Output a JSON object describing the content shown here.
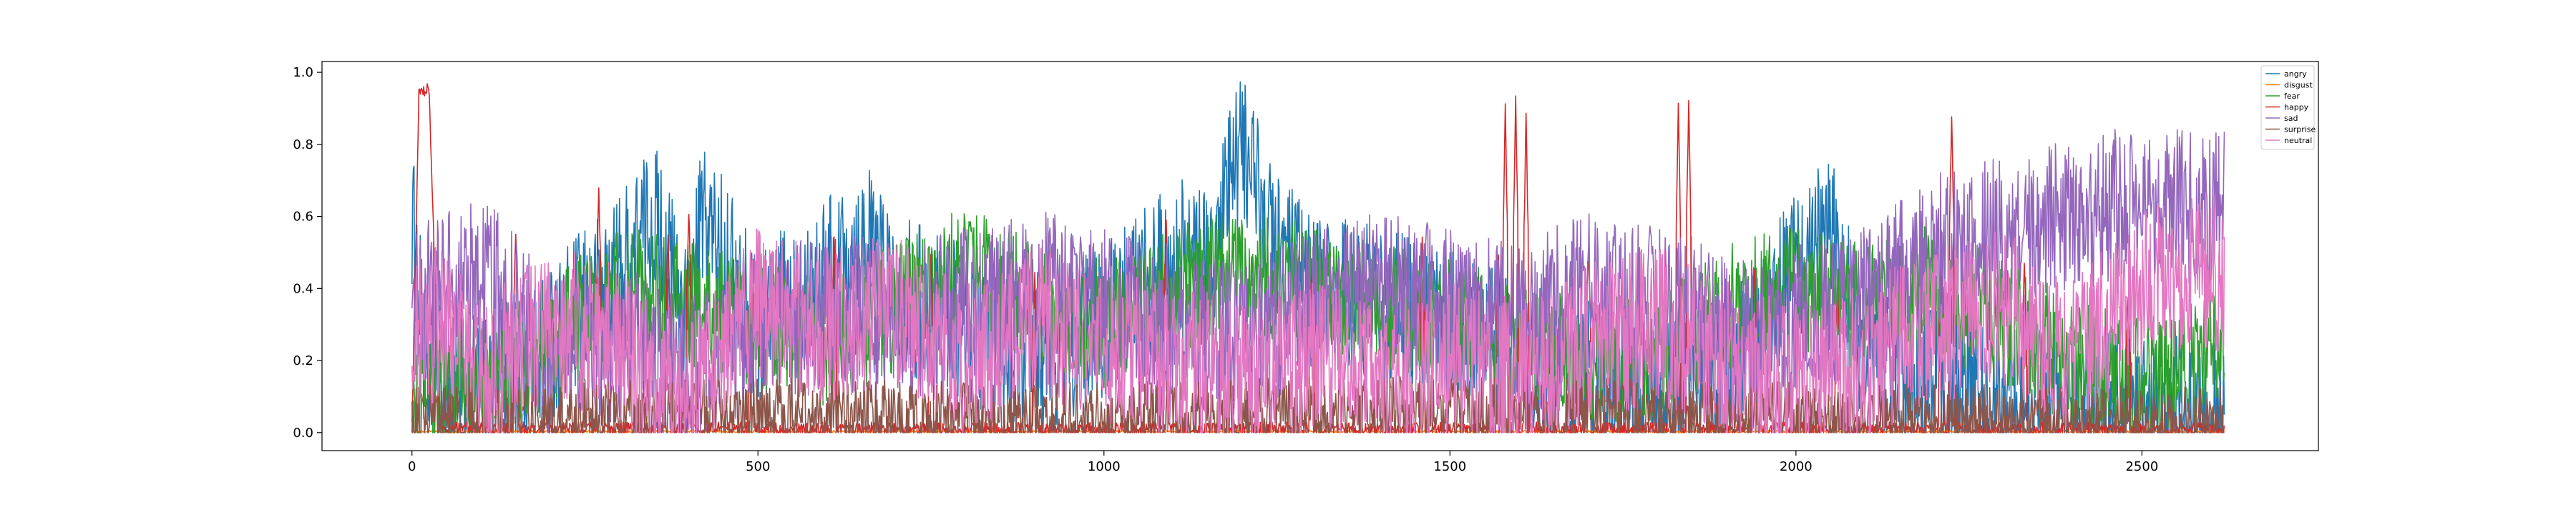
{
  "chart_data": {
    "type": "line",
    "title": "",
    "xlabel": "",
    "ylabel": "",
    "xlim": [
      -130,
      2755
    ],
    "ylim": [
      -0.05,
      1.03
    ],
    "x_count": 2620,
    "xticks": [
      0,
      500,
      1000,
      1500,
      2000,
      2500
    ],
    "xtick_labels": [
      "0",
      "500",
      "1000",
      "1500",
      "2000",
      "2500"
    ],
    "yticks": [
      0.0,
      0.2,
      0.4,
      0.6,
      0.8,
      1.0
    ],
    "ytick_labels": [
      "0.0",
      "0.2",
      "0.4",
      "0.6",
      "0.8",
      "1.0"
    ],
    "grid": false,
    "legend_position": "top-right",
    "series": [
      {
        "name": "angry",
        "color": "#1f77b4",
        "keypoints": [
          [
            0,
            0.6
          ],
          [
            20,
            0.15
          ],
          [
            100,
            0.12
          ],
          [
            200,
            0.25
          ],
          [
            300,
            0.45
          ],
          [
            350,
            0.6
          ],
          [
            400,
            0.3
          ],
          [
            420,
            0.6
          ],
          [
            500,
            0.3
          ],
          [
            600,
            0.45
          ],
          [
            650,
            0.55
          ],
          [
            700,
            0.4
          ],
          [
            800,
            0.3
          ],
          [
            900,
            0.2
          ],
          [
            1000,
            0.3
          ],
          [
            1100,
            0.5
          ],
          [
            1150,
            0.45
          ],
          [
            1200,
            0.8
          ],
          [
            1250,
            0.5
          ],
          [
            1300,
            0.4
          ],
          [
            1400,
            0.35
          ],
          [
            1500,
            0.3
          ],
          [
            1600,
            0.2
          ],
          [
            1700,
            0.15
          ],
          [
            1800,
            0.1
          ],
          [
            1900,
            0.15
          ],
          [
            2000,
            0.45
          ],
          [
            2050,
            0.55
          ],
          [
            2100,
            0.2
          ],
          [
            2200,
            0.15
          ],
          [
            2300,
            0.1
          ],
          [
            2400,
            0.08
          ],
          [
            2500,
            0.05
          ],
          [
            2620,
            0.05
          ]
        ],
        "amplitude": 0.22
      },
      {
        "name": "disgust",
        "color": "#ff7f0e",
        "keypoints": [
          [
            0,
            0.003
          ],
          [
            2620,
            0.003
          ]
        ],
        "amplitude": 0.003
      },
      {
        "name": "fear",
        "color": "#2ca02c",
        "keypoints": [
          [
            0,
            0.05
          ],
          [
            50,
            0.15
          ],
          [
            100,
            0.15
          ],
          [
            200,
            0.25
          ],
          [
            300,
            0.4
          ],
          [
            400,
            0.35
          ],
          [
            500,
            0.3
          ],
          [
            600,
            0.25
          ],
          [
            700,
            0.35
          ],
          [
            800,
            0.45
          ],
          [
            900,
            0.35
          ],
          [
            1000,
            0.3
          ],
          [
            1100,
            0.4
          ],
          [
            1200,
            0.45
          ],
          [
            1300,
            0.4
          ],
          [
            1400,
            0.35
          ],
          [
            1500,
            0.3
          ],
          [
            1600,
            0.25
          ],
          [
            1700,
            0.2
          ],
          [
            1800,
            0.2
          ],
          [
            1900,
            0.35
          ],
          [
            2000,
            0.4
          ],
          [
            2100,
            0.35
          ],
          [
            2200,
            0.4
          ],
          [
            2300,
            0.3
          ],
          [
            2400,
            0.2
          ],
          [
            2500,
            0.15
          ],
          [
            2600,
            0.2
          ],
          [
            2620,
            0.25
          ]
        ],
        "amplitude": 0.18
      },
      {
        "name": "happy",
        "color": "#d62728",
        "keypoints": [
          [
            0,
            0.01
          ],
          [
            10,
            0.95
          ],
          [
            25,
            0.95
          ],
          [
            40,
            0.01
          ],
          [
            2620,
            0.01
          ]
        ],
        "amplitude": 0.02,
        "spikes": [
          [
            150,
            0.6
          ],
          [
            270,
            0.7
          ],
          [
            370,
            0.55
          ],
          [
            400,
            0.65
          ],
          [
            490,
            0.5
          ],
          [
            610,
            0.55
          ],
          [
            750,
            0.5
          ],
          [
            900,
            0.45
          ],
          [
            1090,
            0.6
          ],
          [
            1300,
            0.45
          ],
          [
            1460,
            0.55
          ],
          [
            1570,
            0.5
          ],
          [
            1580,
            0.92
          ],
          [
            1595,
            0.95
          ],
          [
            1610,
            0.9
          ],
          [
            1700,
            0.55
          ],
          [
            1830,
            0.95
          ],
          [
            1845,
            0.96
          ],
          [
            1940,
            0.5
          ],
          [
            2060,
            0.45
          ],
          [
            2210,
            0.55
          ],
          [
            2225,
            0.92
          ],
          [
            2330,
            0.5
          ],
          [
            2480,
            0.4
          ]
        ]
      },
      {
        "name": "sad",
        "color": "#9467bd",
        "keypoints": [
          [
            0,
            0.35
          ],
          [
            50,
            0.4
          ],
          [
            100,
            0.45
          ],
          [
            200,
            0.2
          ],
          [
            300,
            0.25
          ],
          [
            400,
            0.15
          ],
          [
            500,
            0.3
          ],
          [
            600,
            0.35
          ],
          [
            700,
            0.3
          ],
          [
            800,
            0.35
          ],
          [
            900,
            0.4
          ],
          [
            1000,
            0.35
          ],
          [
            1100,
            0.3
          ],
          [
            1200,
            0.25
          ],
          [
            1300,
            0.35
          ],
          [
            1400,
            0.4
          ],
          [
            1500,
            0.35
          ],
          [
            1600,
            0.3
          ],
          [
            1700,
            0.4
          ],
          [
            1800,
            0.35
          ],
          [
            1900,
            0.3
          ],
          [
            2000,
            0.3
          ],
          [
            2100,
            0.35
          ],
          [
            2200,
            0.5
          ],
          [
            2300,
            0.55
          ],
          [
            2400,
            0.6
          ],
          [
            2500,
            0.65
          ],
          [
            2600,
            0.6
          ],
          [
            2620,
            0.65
          ]
        ],
        "amplitude": 0.22
      },
      {
        "name": "surprise",
        "color": "#8c564b",
        "keypoints": [
          [
            0,
            0.03
          ],
          [
            300,
            0.05
          ],
          [
            600,
            0.05
          ],
          [
            900,
            0.04
          ],
          [
            1200,
            0.05
          ],
          [
            1500,
            0.06
          ],
          [
            1800,
            0.05
          ],
          [
            2100,
            0.04
          ],
          [
            2400,
            0.03
          ],
          [
            2620,
            0.03
          ]
        ],
        "amplitude": 0.1
      },
      {
        "name": "neutral",
        "color": "#e377c2",
        "keypoints": [
          [
            0,
            0.3
          ],
          [
            50,
            0.3
          ],
          [
            100,
            0.15
          ],
          [
            200,
            0.3
          ],
          [
            300,
            0.25
          ],
          [
            400,
            0.1
          ],
          [
            500,
            0.35
          ],
          [
            600,
            0.3
          ],
          [
            700,
            0.35
          ],
          [
            800,
            0.2
          ],
          [
            900,
            0.3
          ],
          [
            1000,
            0.25
          ],
          [
            1100,
            0.2
          ],
          [
            1200,
            0.15
          ],
          [
            1300,
            0.2
          ],
          [
            1400,
            0.15
          ],
          [
            1500,
            0.2
          ],
          [
            1600,
            0.15
          ],
          [
            1700,
            0.25
          ],
          [
            1800,
            0.3
          ],
          [
            1900,
            0.2
          ],
          [
            2000,
            0.15
          ],
          [
            2100,
            0.2
          ],
          [
            2200,
            0.3
          ],
          [
            2300,
            0.35
          ],
          [
            2400,
            0.2
          ],
          [
            2500,
            0.4
          ],
          [
            2600,
            0.45
          ],
          [
            2620,
            0.4
          ]
        ],
        "amplitude": 0.22
      }
    ]
  }
}
